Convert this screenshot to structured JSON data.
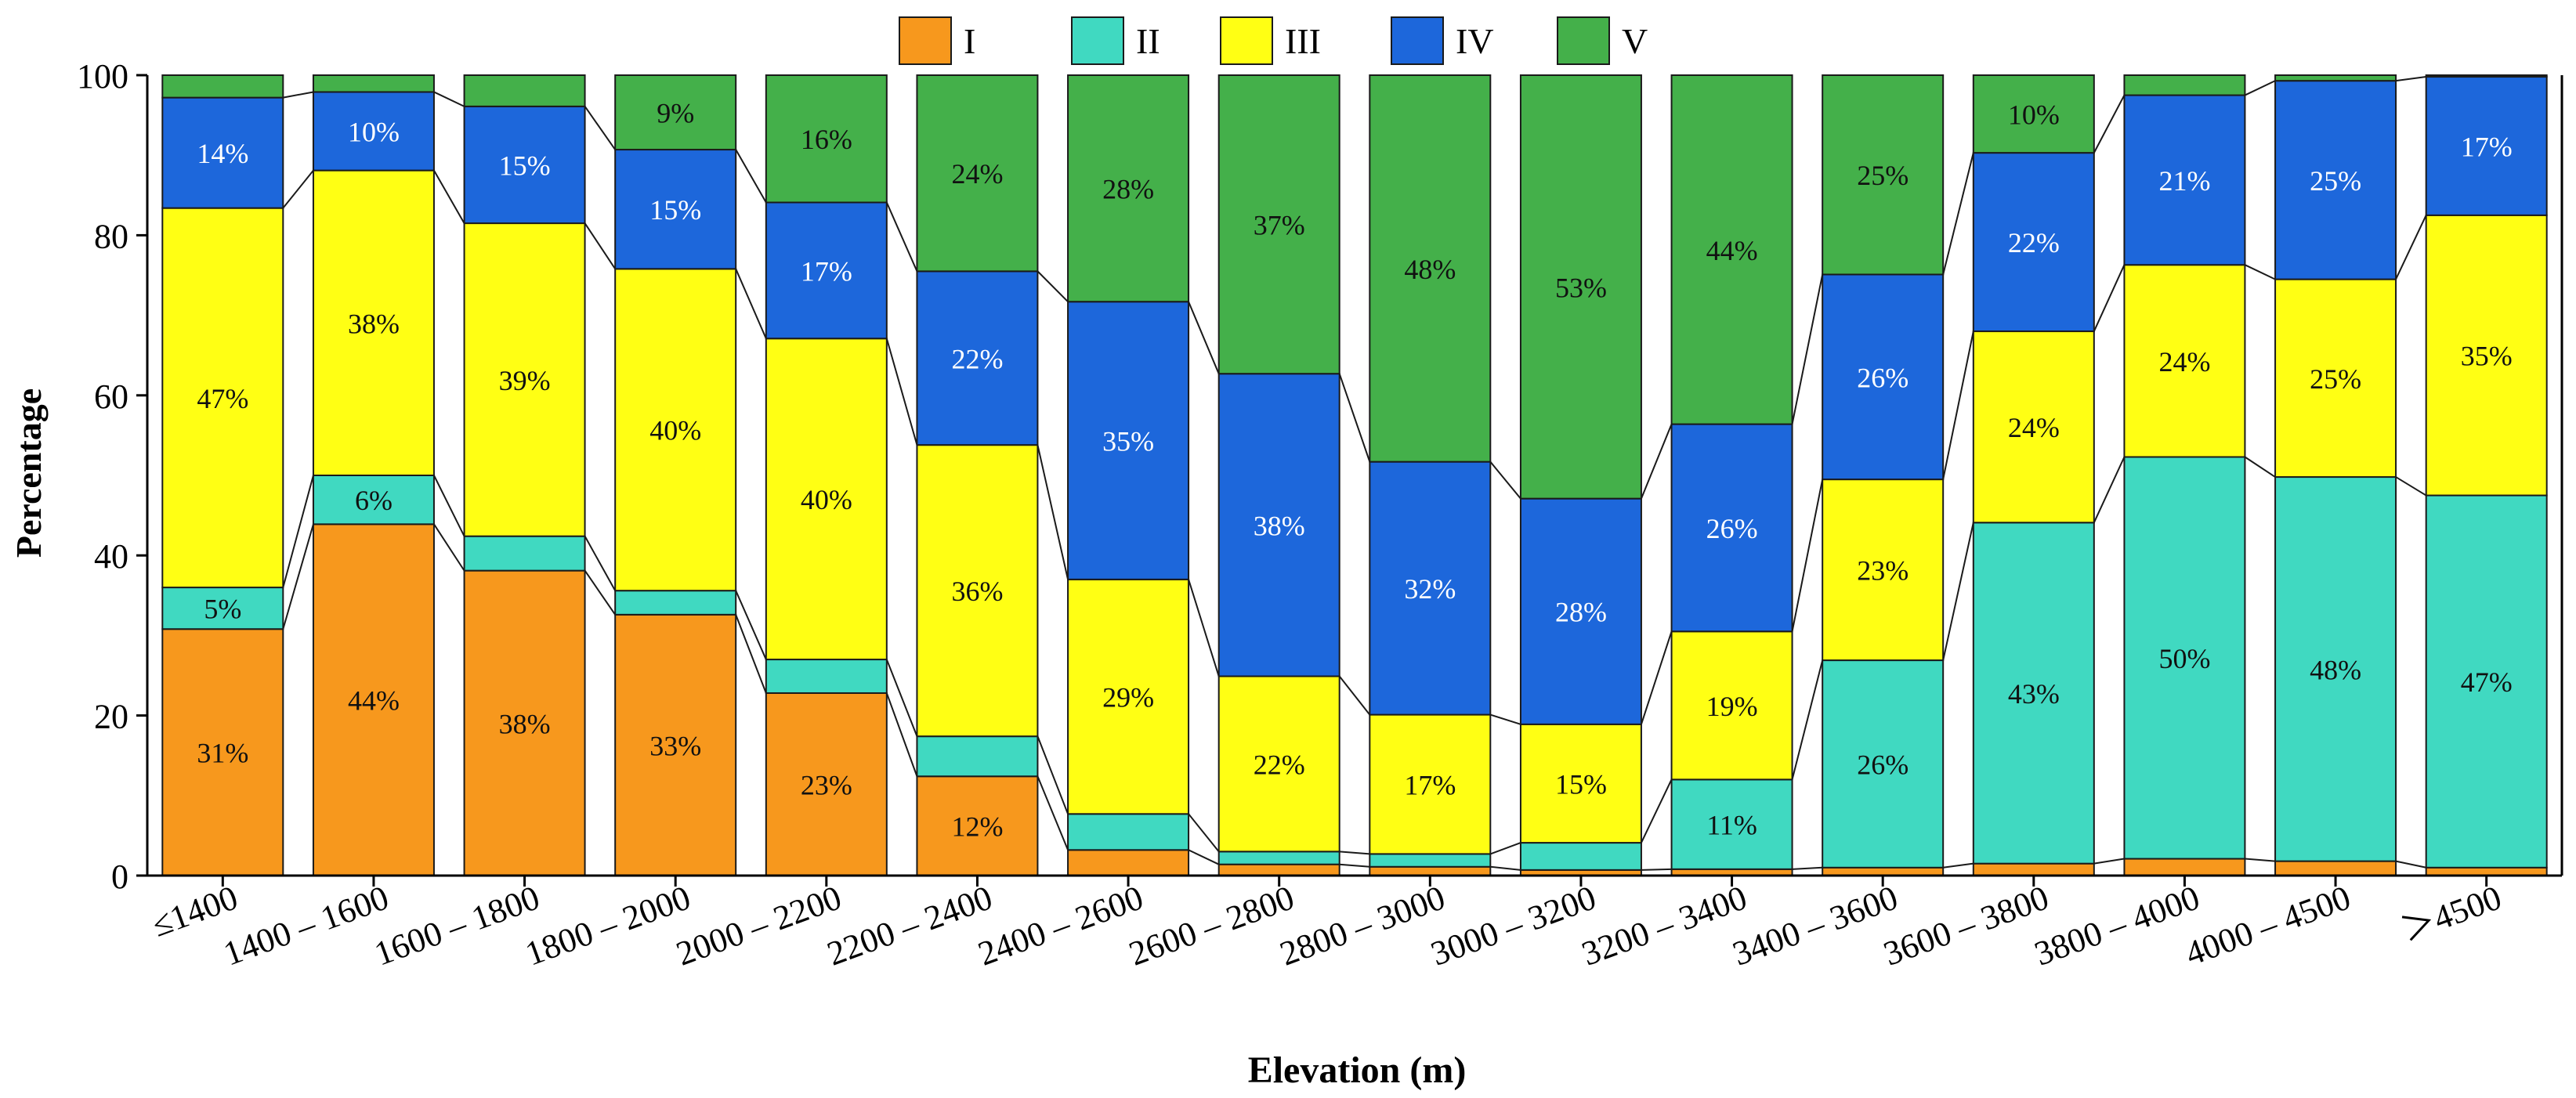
{
  "chart_data": {
    "type": "bar",
    "stacked": true,
    "xlabel": "Elevation (m)",
    "ylabel": "Percentage",
    "ylim": [
      0,
      100
    ],
    "yticks": [
      0,
      20,
      40,
      60,
      80,
      100
    ],
    "legend_position": "top-center",
    "categories": [
      "≤1400",
      "1400 – 1600",
      "1600 – 1800",
      "1800 – 2000",
      "2000 – 2200",
      "2200 – 2400",
      "2400 – 2600",
      "2600 – 2800",
      "2800 – 3000",
      "3000 – 3200",
      "3200 – 3400",
      "3400 – 3600",
      "3600 – 3800",
      "3800 – 4000",
      "4000 – 4500",
      "＞4500"
    ],
    "series": [
      {
        "name": "I",
        "color": "#F7981D",
        "values": [
          30.8,
          43.9,
          38.1,
          32.6,
          22.8,
          12.4,
          3.2,
          1.4,
          1.1,
          0.7,
          0.8,
          1.0,
          1.5,
          2.1,
          1.8,
          1.0
        ],
        "labels": [
          "31%",
          "44%",
          "38%",
          "33%",
          "23%",
          "12%",
          "",
          "",
          "",
          "",
          "",
          "",
          "",
          "",
          "",
          ""
        ]
      },
      {
        "name": "II",
        "color": "#40D9C1",
        "values": [
          5.2,
          6.1,
          4.3,
          3.0,
          4.2,
          5.0,
          4.5,
          1.6,
          1.6,
          3.4,
          11.2,
          25.9,
          42.6,
          50.2,
          48.0,
          46.5
        ],
        "labels": [
          "5%",
          "6%",
          "",
          "",
          "",
          "",
          "",
          "",
          "",
          "",
          "11%",
          "26%",
          "43%",
          "50%",
          "48%",
          "47%"
        ]
      },
      {
        "name": "III",
        "color": "#FFFF14",
        "values": [
          47.4,
          38.1,
          39.1,
          40.2,
          40.1,
          36.4,
          29.3,
          21.9,
          17.4,
          14.8,
          18.5,
          22.6,
          23.9,
          24.0,
          24.7,
          35.0
        ],
        "labels": [
          "47%",
          "38%",
          "39%",
          "40%",
          "40%",
          "36%",
          "29%",
          "22%",
          "17%",
          "15%",
          "19%",
          "23%",
          "24%",
          "24%",
          "25%",
          "35%"
        ]
      },
      {
        "name": "IV",
        "color": "#1D67DB",
        "values": [
          13.8,
          9.8,
          14.6,
          14.9,
          17.0,
          21.7,
          34.7,
          37.8,
          31.6,
          28.2,
          25.9,
          25.6,
          22.3,
          21.2,
          24.8,
          17.3
        ],
        "labels": [
          "14%",
          "10%",
          "15%",
          "15%",
          "17%",
          "22%",
          "35%",
          "38%",
          "32%",
          "28%",
          "26%",
          "26%",
          "22%",
          "21%",
          "25%",
          "17%"
        ]
      },
      {
        "name": "V",
        "color": "#44B04A",
        "values": [
          2.8,
          2.1,
          3.9,
          9.3,
          15.9,
          24.5,
          28.3,
          37.3,
          48.3,
          52.9,
          43.6,
          24.9,
          9.7,
          2.5,
          0.7,
          0.2
        ],
        "labels": [
          "",
          "",
          "",
          "9%",
          "16%",
          "24%",
          "28%",
          "37%",
          "48%",
          "53%",
          "44%",
          "25%",
          "10%",
          "",
          "",
          ""
        ]
      }
    ]
  }
}
